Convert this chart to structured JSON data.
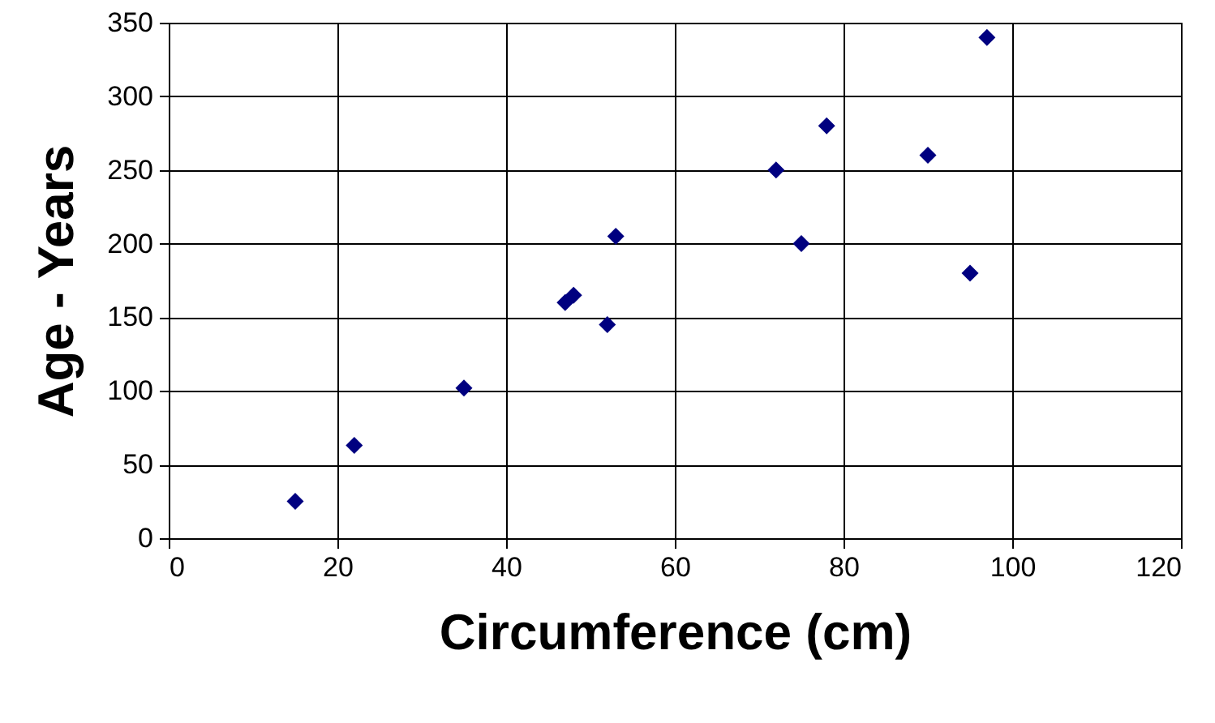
{
  "chart_data": {
    "type": "scatter",
    "xlabel": "Circumference (cm)",
    "ylabel": "Age - Years",
    "x": [
      15,
      22,
      35,
      47,
      48,
      52,
      53,
      72,
      75,
      78,
      90,
      95,
      97
    ],
    "series": [
      {
        "color": "#000080",
        "values": [
          25,
          63,
          102,
          160,
          165,
          145,
          205,
          250,
          200,
          280,
          260,
          180,
          340
        ]
      }
    ],
    "xlim": [
      0,
      120
    ],
    "xticks": [
      0,
      20,
      40,
      60,
      80,
      100,
      120
    ],
    "ylim": [
      0,
      350
    ],
    "yticks": [
      0,
      50,
      100,
      150,
      200,
      250,
      300,
      350
    ],
    "grid": true,
    "marker": "diamond"
  }
}
